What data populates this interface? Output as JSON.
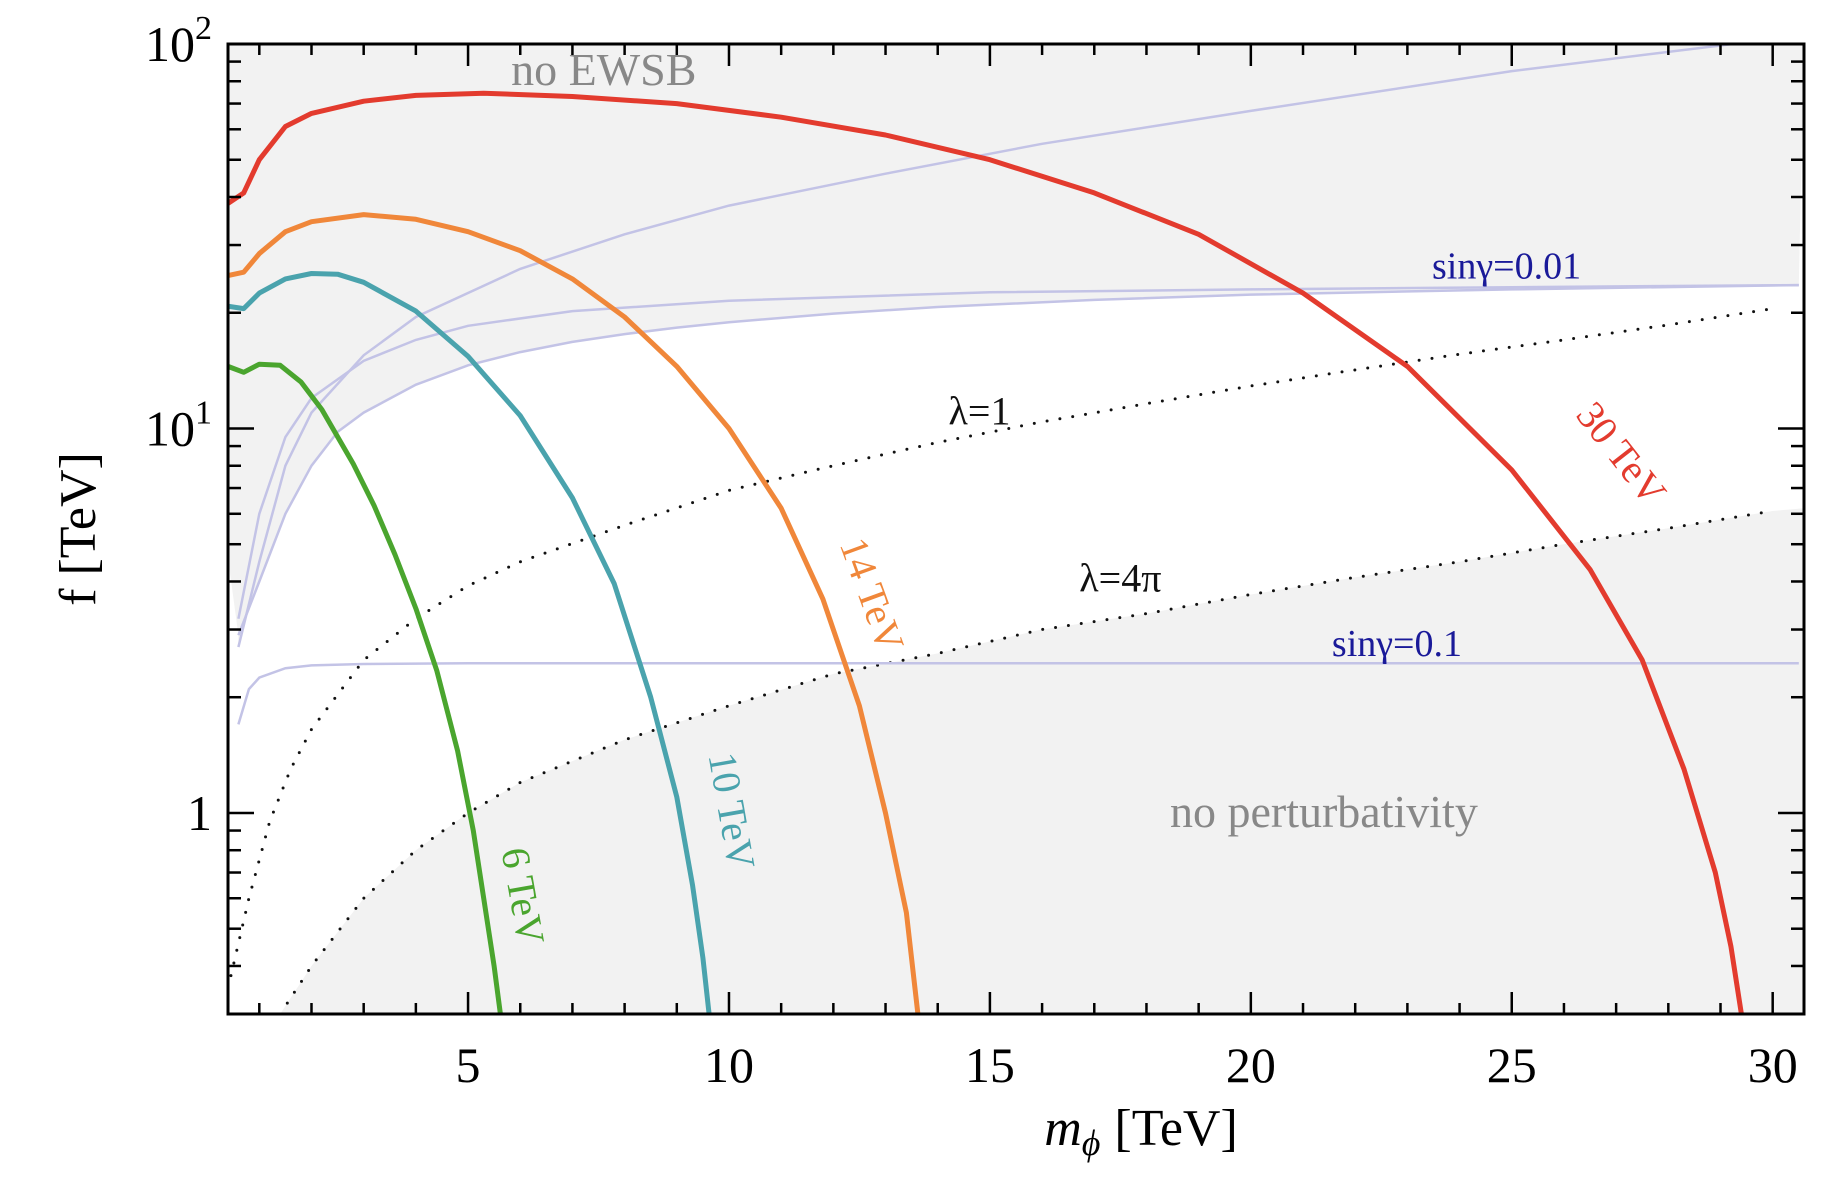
{
  "chart_data": {
    "type": "line",
    "title": "",
    "xlabel_main": "m",
    "xlabel_sub": "ϕ",
    "xlabel_unit": "[TeV]",
    "ylabel": "f [TeV]",
    "xlim": [
      0.4,
      30.6
    ],
    "ylim": [
      0.3,
      100
    ],
    "yscale": "log",
    "x_ticks": [
      {
        "value": 5,
        "label": "5"
      },
      {
        "value": 10,
        "label": "10"
      },
      {
        "value": 15,
        "label": "15"
      },
      {
        "value": 20,
        "label": "20"
      },
      {
        "value": 25,
        "label": "25"
      },
      {
        "value": 30,
        "label": "30"
      }
    ],
    "y_ticks": [
      {
        "value": 1,
        "base": "1",
        "exp": ""
      },
      {
        "value": 10,
        "base": "10",
        "exp": "1"
      },
      {
        "value": 100,
        "base": "10",
        "exp": "2"
      }
    ],
    "regions": [
      {
        "name": "no EWSB",
        "label": "no EWSB",
        "color": "#f2f2f2",
        "label_color": "#888888",
        "label_at": [
          7.6,
          85
        ]
      },
      {
        "name": "no perturbativity",
        "label": "no perturbativity",
        "color": "#f2f2f2",
        "label_color": "#888888",
        "label_at": [
          21.4,
          1.0
        ]
      }
    ],
    "series": [
      {
        "name": "6 TeV",
        "label": "6 TeV",
        "color": "#4aa52e",
        "x": [
          0.4,
          0.7,
          1.0,
          1.4,
          1.8,
          2.2,
          2.8,
          3.2,
          3.6,
          4.0,
          4.4,
          4.8,
          5.1,
          5.3,
          5.5,
          5.62
        ],
        "y": [
          14.5,
          14.0,
          14.7,
          14.6,
          13.2,
          11.2,
          8.1,
          6.3,
          4.7,
          3.4,
          2.35,
          1.45,
          0.9,
          0.6,
          0.4,
          0.3
        ],
        "label_at": [
          5.8,
          0.6
        ],
        "label_rotate": 80
      },
      {
        "name": "10 TeV",
        "label": "10 TeV",
        "color": "#4aa3ad",
        "x": [
          0.4,
          0.7,
          1.0,
          1.5,
          2.0,
          2.5,
          3.0,
          4.0,
          5.0,
          6.0,
          7.0,
          7.8,
          8.5,
          9.0,
          9.3,
          9.5,
          9.62
        ],
        "y": [
          20.8,
          20.5,
          22.5,
          24.5,
          25.3,
          25.2,
          24.0,
          20.2,
          15.4,
          10.8,
          6.6,
          3.95,
          2.0,
          1.1,
          0.65,
          0.42,
          0.3
        ],
        "label_at": [
          9.8,
          1.0
        ],
        "label_rotate": 80
      },
      {
        "name": "14 TeV",
        "label": "14 TeV",
        "color": "#f0873a",
        "x": [
          0.4,
          0.7,
          1.0,
          1.5,
          2.0,
          3.0,
          4.0,
          5.0,
          6.0,
          7.0,
          8.0,
          9.0,
          10.0,
          11.0,
          11.8,
          12.5,
          13.0,
          13.4,
          13.62
        ],
        "y": [
          25.0,
          25.5,
          28.5,
          32.5,
          34.5,
          36.0,
          35.0,
          32.5,
          29.0,
          24.5,
          19.5,
          14.5,
          10.0,
          6.2,
          3.6,
          1.9,
          1.0,
          0.55,
          0.3
        ],
        "label_at": [
          12.5,
          3.6
        ],
        "label_rotate": 70
      },
      {
        "name": "30 TeV",
        "label": "30 TeV",
        "color": "#e33b2e",
        "x": [
          0.4,
          0.7,
          1.0,
          1.5,
          2.0,
          3.0,
          4.0,
          5.3,
          7.0,
          9.0,
          11.0,
          13.0,
          15.0,
          17.0,
          19.0,
          21.0,
          23.0,
          25.0,
          26.5,
          27.5,
          28.3,
          28.9,
          29.2,
          29.4
        ],
        "y": [
          38.5,
          41.0,
          50.0,
          61.0,
          66.0,
          71.0,
          73.5,
          74.5,
          73.0,
          70.0,
          64.5,
          58.0,
          50.0,
          41.0,
          32.0,
          22.5,
          14.5,
          7.8,
          4.3,
          2.5,
          1.3,
          0.7,
          0.45,
          0.3
        ],
        "label_at": [
          26.9,
          8.2
        ],
        "label_rotate": 52
      }
    ],
    "reference_lines": [
      {
        "name": "lambda-1",
        "label": "λ=1",
        "style": "dotted",
        "color": "#111111",
        "x": [
          0.4,
          0.8,
          1.2,
          1.6,
          2.0,
          3.0,
          4.0,
          5.0,
          6.0,
          8.0,
          10.0,
          12.0,
          14.0,
          16.0,
          18.0,
          20.0,
          22.0,
          24.0,
          26.0,
          28.0,
          30.0
        ],
        "y": [
          0.35,
          0.6,
          0.95,
          1.3,
          1.65,
          2.5,
          3.2,
          3.9,
          4.5,
          5.6,
          6.9,
          8.0,
          9.2,
          10.4,
          11.6,
          12.9,
          14.2,
          15.6,
          17.0,
          18.6,
          20.5
        ],
        "label_at": [
          14.8,
          11.0
        ]
      },
      {
        "name": "lambda-4pi",
        "label": "λ=4π",
        "style": "dotted",
        "color": "#111111",
        "x": [
          1.4,
          2.0,
          3.0,
          4.0,
          5.0,
          6.0,
          8.0,
          10.0,
          12.0,
          14.0,
          16.0,
          18.0,
          20.0,
          22.0,
          24.0,
          26.0,
          28.0,
          30.0
        ],
        "y": [
          0.3,
          0.4,
          0.6,
          0.8,
          1.0,
          1.2,
          1.55,
          1.9,
          2.3,
          2.6,
          3.0,
          3.3,
          3.7,
          4.1,
          4.5,
          5.0,
          5.5,
          6.1
        ],
        "label_at": [
          17.5,
          4.05
        ]
      },
      {
        "name": "sin-gamma-0.01",
        "label": "sinγ=0.01",
        "style": "solid",
        "color": "#c3c3e6",
        "x": [
          0.6,
          1.0,
          1.5,
          2.0,
          3.0,
          4.0,
          5.0,
          7.0,
          10.0,
          15.0,
          20.0,
          25.0,
          30.5
        ],
        "y": [
          3.2,
          6.0,
          9.5,
          12.0,
          15.0,
          17.0,
          18.5,
          20.2,
          21.5,
          22.6,
          23.0,
          23.3,
          23.6
        ],
        "label_at": [
          24.9,
          26.4
        ]
      },
      {
        "name": "sin-gamma-0.1",
        "label": "sinγ=0.1",
        "style": "solid",
        "color": "#c3c3e6",
        "x": [
          0.6,
          0.8,
          1.0,
          1.5,
          2.0,
          3.0,
          5.0,
          10.0,
          20.0,
          30.5
        ],
        "y": [
          1.7,
          2.1,
          2.25,
          2.38,
          2.42,
          2.44,
          2.45,
          2.45,
          2.45,
          2.45
        ],
        "label_at": [
          22.8,
          2.75
        ]
      },
      {
        "name": "ewsb-boundary-upper",
        "label": "",
        "style": "solid",
        "color": "#c3c3e6",
        "x": [
          0.6,
          1.0,
          1.5,
          2.0,
          3.0,
          4.0,
          6.0,
          8.0,
          10.0,
          13.0,
          16.0,
          20.0,
          25.0,
          30.5
        ],
        "y": [
          2.7,
          4.5,
          8.0,
          11.0,
          15.5,
          19.5,
          26.0,
          32.0,
          38.0,
          46.0,
          55.0,
          67.0,
          85.0,
          105.0
        ]
      },
      {
        "name": "ewsb-boundary-lower",
        "label": "",
        "style": "solid",
        "color": "#c3c3e6",
        "x": [
          0.6,
          1.0,
          1.5,
          2.0,
          2.5,
          3.0,
          4.0,
          5.0,
          6.0,
          7.0,
          8.0,
          9.0,
          10.0,
          12.0,
          14.0,
          17.0,
          20.0,
          25.0,
          30.5
        ],
        "y": [
          2.9,
          4.0,
          6.0,
          8.0,
          9.8,
          11.0,
          13.0,
          14.6,
          15.8,
          16.8,
          17.6,
          18.3,
          18.9,
          19.9,
          20.7,
          21.6,
          22.3,
          23.0,
          23.6
        ]
      }
    ],
    "label_colors": {
      "sin_gamma": "#1a1a99",
      "lambda": "#111111"
    }
  }
}
